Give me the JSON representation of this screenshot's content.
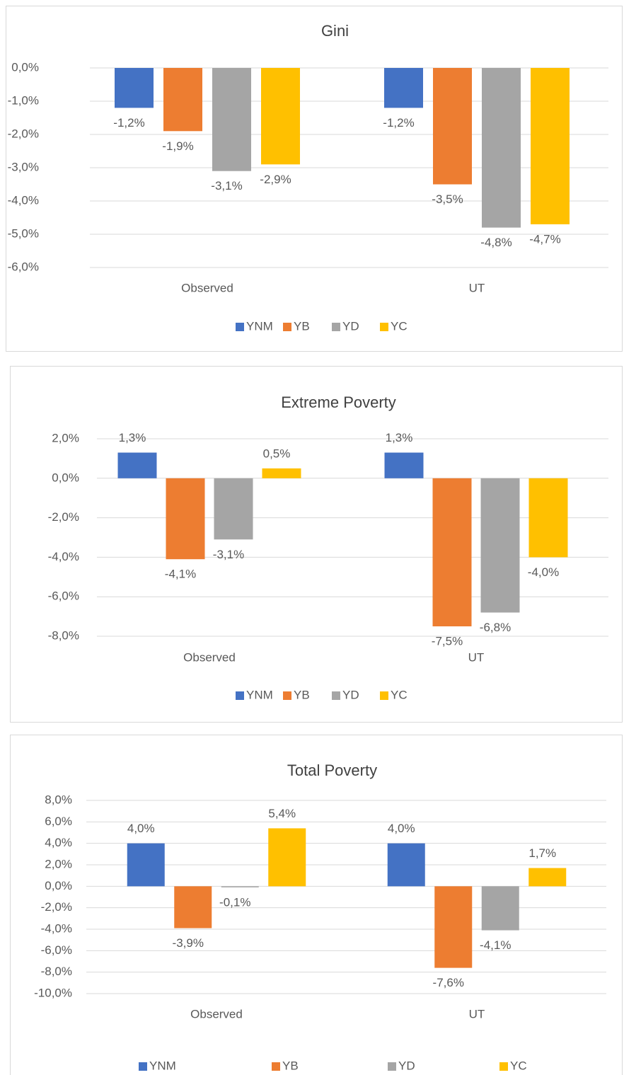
{
  "chart_data": [
    {
      "type": "bar",
      "title": "Gini",
      "categories": [
        "Observed",
        "UT"
      ],
      "series": [
        {
          "name": "YNM",
          "color": "#4472c4",
          "values": [
            -1.2,
            -1.2
          ],
          "value_labels": [
            "-1,2%",
            "-1,2%"
          ]
        },
        {
          "name": "YB",
          "color": "#ed7d31",
          "values": [
            -1.9,
            -3.5
          ],
          "value_labels": [
            "-1,9%",
            "-3,5%"
          ]
        },
        {
          "name": "YD",
          "color": "#a5a5a5",
          "values": [
            -3.1,
            -4.8
          ],
          "value_labels": [
            "-3,1%",
            "-4,8%"
          ]
        },
        {
          "name": "YC",
          "color": "#ffc000",
          "values": [
            -2.9,
            -4.7
          ],
          "value_labels": [
            "-2,9%",
            "-4,7%"
          ]
        }
      ],
      "ylim": [
        -6,
        0
      ],
      "yticks": [
        {
          "value": 0,
          "label": "0,0%"
        },
        {
          "value": -1,
          "label": "-1,0%"
        },
        {
          "value": -2,
          "label": "-2,0%"
        },
        {
          "value": -3,
          "label": "-3,0%"
        },
        {
          "value": -4,
          "label": "-4,0%"
        },
        {
          "value": -5,
          "label": "-5,0%"
        },
        {
          "value": -6,
          "label": "-6,0%"
        }
      ],
      "grid": true,
      "legend": "bottom"
    },
    {
      "type": "bar",
      "title": "Extreme Poverty",
      "categories": [
        "Observed",
        "UT"
      ],
      "series": [
        {
          "name": "YNM",
          "color": "#4472c4",
          "values": [
            1.3,
            1.3
          ],
          "value_labels": [
            "1,3%",
            "1,3%"
          ]
        },
        {
          "name": "YB",
          "color": "#ed7d31",
          "values": [
            -4.1,
            -7.5
          ],
          "value_labels": [
            "-4,1%",
            "-7,5%"
          ]
        },
        {
          "name": "YD",
          "color": "#a5a5a5",
          "values": [
            -3.1,
            -6.8
          ],
          "value_labels": [
            "-3,1%",
            "-6,8%"
          ]
        },
        {
          "name": "YC",
          "color": "#ffc000",
          "values": [
            0.5,
            -4.0
          ],
          "value_labels": [
            "0,5%",
            "-4,0%"
          ]
        }
      ],
      "ylim": [
        -8,
        2
      ],
      "yticks": [
        {
          "value": 2,
          "label": "2,0%"
        },
        {
          "value": 0,
          "label": "0,0%"
        },
        {
          "value": -2,
          "label": "-2,0%"
        },
        {
          "value": -4,
          "label": "-4,0%"
        },
        {
          "value": -6,
          "label": "-6,0%"
        },
        {
          "value": -8,
          "label": "-8,0%"
        }
      ],
      "grid": true,
      "legend": "bottom"
    },
    {
      "type": "bar",
      "title": "Total Poverty",
      "categories": [
        "Observed",
        "UT"
      ],
      "series": [
        {
          "name": "YNM",
          "color": "#4472c4",
          "values": [
            4.0,
            4.0
          ],
          "value_labels": [
            "4,0%",
            "4,0%"
          ]
        },
        {
          "name": "YB",
          "color": "#ed7d31",
          "values": [
            -3.9,
            -7.6
          ],
          "value_labels": [
            "-3,9%",
            "-7,6%"
          ]
        },
        {
          "name": "YD",
          "color": "#a5a5a5",
          "values": [
            -0.1,
            -4.1
          ],
          "value_labels": [
            "-0,1%",
            "-4,1%"
          ]
        },
        {
          "name": "YC",
          "color": "#ffc000",
          "values": [
            5.4,
            1.7
          ],
          "value_labels": [
            "5,4%",
            "1,7%"
          ]
        }
      ],
      "ylim": [
        -10,
        8
      ],
      "yticks": [
        {
          "value": 8,
          "label": "8,0%"
        },
        {
          "value": 6,
          "label": "6,0%"
        },
        {
          "value": 4,
          "label": "4,0%"
        },
        {
          "value": 2,
          "label": "2,0%"
        },
        {
          "value": 0,
          "label": "0,0%"
        },
        {
          "value": -2,
          "label": "-2,0%"
        },
        {
          "value": -4,
          "label": "-4,0%"
        },
        {
          "value": -6,
          "label": "-6,0%"
        },
        {
          "value": -8,
          "label": "-8,0%"
        },
        {
          "value": -10,
          "label": "-10,0%"
        }
      ],
      "grid": true,
      "legend": "bottom"
    }
  ]
}
